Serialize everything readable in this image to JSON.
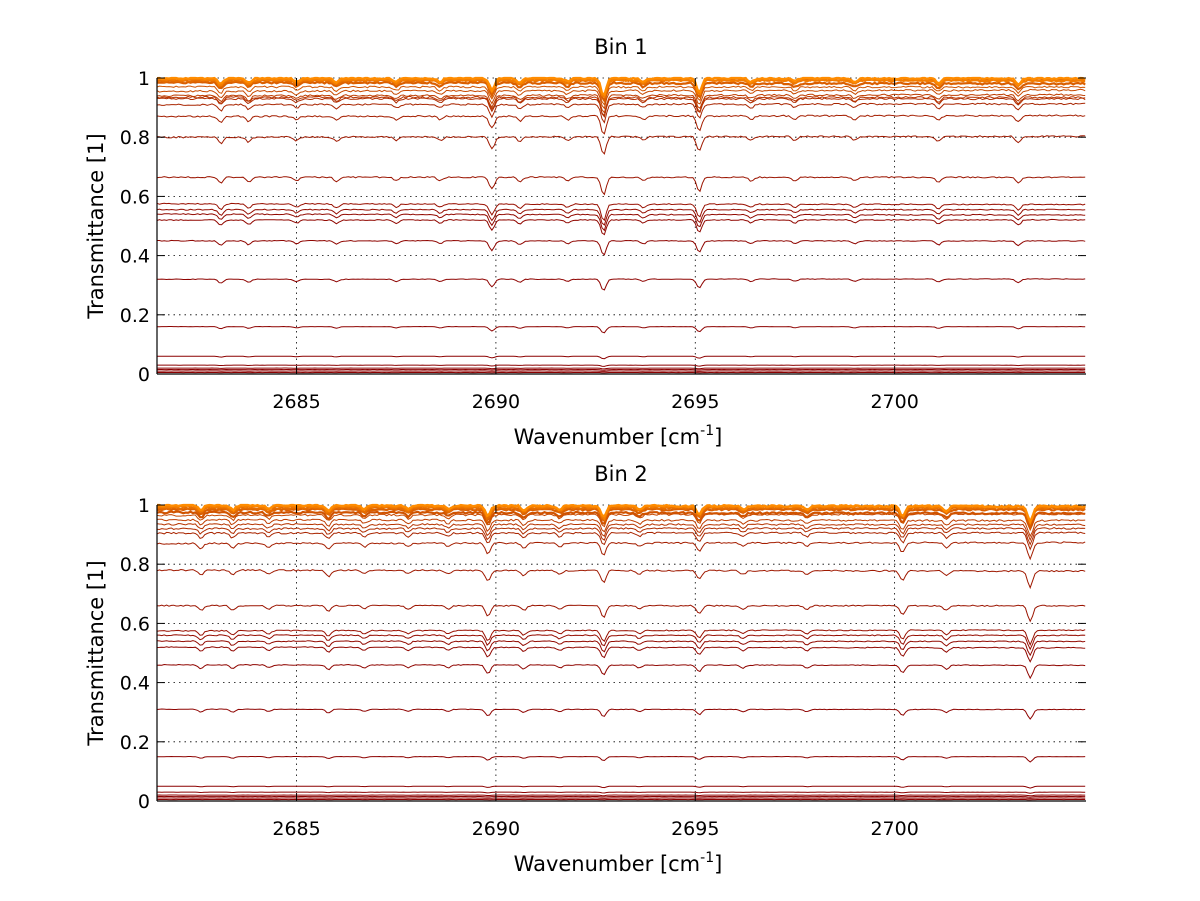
{
  "chart_data": [
    {
      "type": "line",
      "title": "Bin 1",
      "xlabel": "Wavenumber [cm",
      "xlabel_superscript": "-1",
      "xlabel_suffix": "]",
      "ylabel": "Transmittance [1]",
      "xlim": [
        2681.5,
        2704.8
      ],
      "ylim": [
        0,
        1
      ],
      "xticks": [
        2685,
        2690,
        2695,
        2700
      ],
      "yticks": [
        0,
        0.2,
        0.4,
        0.6,
        0.8,
        1
      ],
      "ytick_labels": [
        "0",
        "0.2",
        "0.4",
        "0.6",
        "0.8",
        "1"
      ],
      "grid": true,
      "series_color_low": "#8b0000",
      "series_color_high": "#ff8c00",
      "series_baselines": [
        0.005,
        0.01,
        0.015,
        0.02,
        0.03,
        0.06,
        0.16,
        0.32,
        0.45,
        0.52,
        0.54,
        0.555,
        0.575,
        0.665,
        0.8,
        0.87,
        0.91,
        0.93,
        0.935,
        0.94,
        0.955,
        0.97,
        0.985,
        0.99,
        0.995,
        1.0
      ],
      "absorption_lines": [
        {
          "x": 2683.1,
          "depth": 0.05
        },
        {
          "x": 2683.8,
          "depth": 0.04
        },
        {
          "x": 2685.0,
          "depth": 0.03
        },
        {
          "x": 2686.0,
          "depth": 0.035
        },
        {
          "x": 2687.5,
          "depth": 0.03
        },
        {
          "x": 2688.6,
          "depth": 0.03
        },
        {
          "x": 2689.9,
          "depth": 0.1
        },
        {
          "x": 2690.6,
          "depth": 0.04
        },
        {
          "x": 2691.8,
          "depth": 0.03
        },
        {
          "x": 2692.7,
          "depth": 0.15
        },
        {
          "x": 2693.7,
          "depth": 0.03
        },
        {
          "x": 2695.1,
          "depth": 0.12
        },
        {
          "x": 2696.4,
          "depth": 0.03
        },
        {
          "x": 2697.5,
          "depth": 0.03
        },
        {
          "x": 2699.0,
          "depth": 0.03
        },
        {
          "x": 2701.1,
          "depth": 0.04
        },
        {
          "x": 2703.1,
          "depth": 0.05
        }
      ]
    },
    {
      "type": "line",
      "title": "Bin 2",
      "xlabel": "Wavenumber [cm",
      "xlabel_superscript": "-1",
      "xlabel_suffix": "]",
      "ylabel": "Transmittance [1]",
      "xlim": [
        2681.5,
        2704.8
      ],
      "ylim": [
        0,
        1
      ],
      "xticks": [
        2685,
        2690,
        2695,
        2700
      ],
      "yticks": [
        0,
        0.2,
        0.4,
        0.6,
        0.8,
        1
      ],
      "ytick_labels": [
        "0",
        "0.2",
        "0.4",
        "0.6",
        "0.8",
        "1"
      ],
      "grid": true,
      "series_color_low": "#8b0000",
      "series_color_high": "#ff8c00",
      "series_baselines": [
        0.005,
        0.01,
        0.015,
        0.02,
        0.03,
        0.05,
        0.15,
        0.31,
        0.46,
        0.52,
        0.54,
        0.56,
        0.575,
        0.66,
        0.78,
        0.87,
        0.905,
        0.92,
        0.935,
        0.95,
        0.965,
        0.975,
        0.985,
        0.99,
        0.995,
        1.0
      ],
      "absorption_lines": [
        {
          "x": 2682.6,
          "depth": 0.04
        },
        {
          "x": 2683.4,
          "depth": 0.04
        },
        {
          "x": 2684.3,
          "depth": 0.03
        },
        {
          "x": 2685.8,
          "depth": 0.05
        },
        {
          "x": 2686.7,
          "depth": 0.03
        },
        {
          "x": 2687.8,
          "depth": 0.03
        },
        {
          "x": 2688.8,
          "depth": 0.03
        },
        {
          "x": 2689.8,
          "depth": 0.09
        },
        {
          "x": 2690.7,
          "depth": 0.04
        },
        {
          "x": 2691.6,
          "depth": 0.03
        },
        {
          "x": 2692.7,
          "depth": 0.1
        },
        {
          "x": 2693.6,
          "depth": 0.03
        },
        {
          "x": 2695.1,
          "depth": 0.07
        },
        {
          "x": 2696.2,
          "depth": 0.03
        },
        {
          "x": 2697.8,
          "depth": 0.03
        },
        {
          "x": 2700.2,
          "depth": 0.08
        },
        {
          "x": 2701.3,
          "depth": 0.04
        },
        {
          "x": 2703.4,
          "depth": 0.13
        }
      ]
    }
  ]
}
